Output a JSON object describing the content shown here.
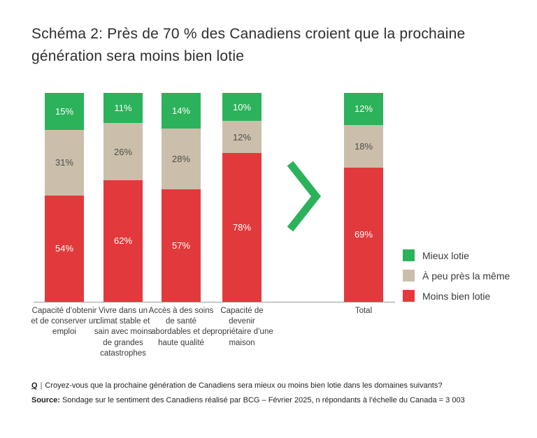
{
  "title": "Schéma 2: Près de 70 % des Canadiens croient que la prochaine génération sera moins bien lotie",
  "colors": {
    "better": "#2cb25a",
    "same": "#cbbfab",
    "worse": "#e23a3c",
    "chevron": "#2cb25a"
  },
  "chart_data": {
    "type": "bar",
    "stacked": true,
    "orientation": "vertical",
    "value_suffix": "%",
    "ylim": [
      0,
      100
    ],
    "grid": false,
    "legend_position": "right",
    "categories": [
      "Capacité d’obtenir et de conserver un emploi",
      "Vivre dans un climat stable et sain avec moins de grandes catastrophes",
      "Accès à des soins de santé abordables et de haute qualité",
      "Capacité de devenir propriétaire d’une maison",
      "Total"
    ],
    "series": [
      {
        "name": "Mieux lotie",
        "color": "#2cb25a",
        "label_color": "#ffffff",
        "values": [
          15,
          11,
          14,
          10,
          12
        ]
      },
      {
        "name": "À peu près la même",
        "color": "#cbbfab",
        "label_color": "#4d4d4d",
        "values": [
          31,
          26,
          28,
          12,
          18
        ]
      },
      {
        "name": "Moins bien lotie",
        "color": "#e23a3c",
        "label_color": "#ffffff",
        "values": [
          54,
          62,
          57,
          78,
          69
        ]
      }
    ]
  },
  "footer": {
    "q_label": "Q",
    "separator": "|",
    "q_text": "Croyez-vous que la prochaine génération de Canadiens sera mieux ou moins bien lotie dans les domaines suivants?",
    "source_label": "Source:",
    "source_text": "Sondage sur le sentiment des Canadiens réalisé par BCG – Février 2025, n répondants à l’échelle du Canada = 3 003"
  }
}
